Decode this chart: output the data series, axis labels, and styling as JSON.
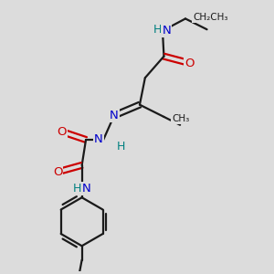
{
  "bg_color": "#dcdcdc",
  "bond_color": "#1a1a1a",
  "N_color": "#0000cc",
  "O_color": "#cc0000",
  "H_color": "#008080",
  "figsize": [
    3.0,
    3.0
  ],
  "dpi": 100,
  "xlim": [
    0.0,
    1.0
  ],
  "ylim": [
    0.0,
    1.0
  ]
}
